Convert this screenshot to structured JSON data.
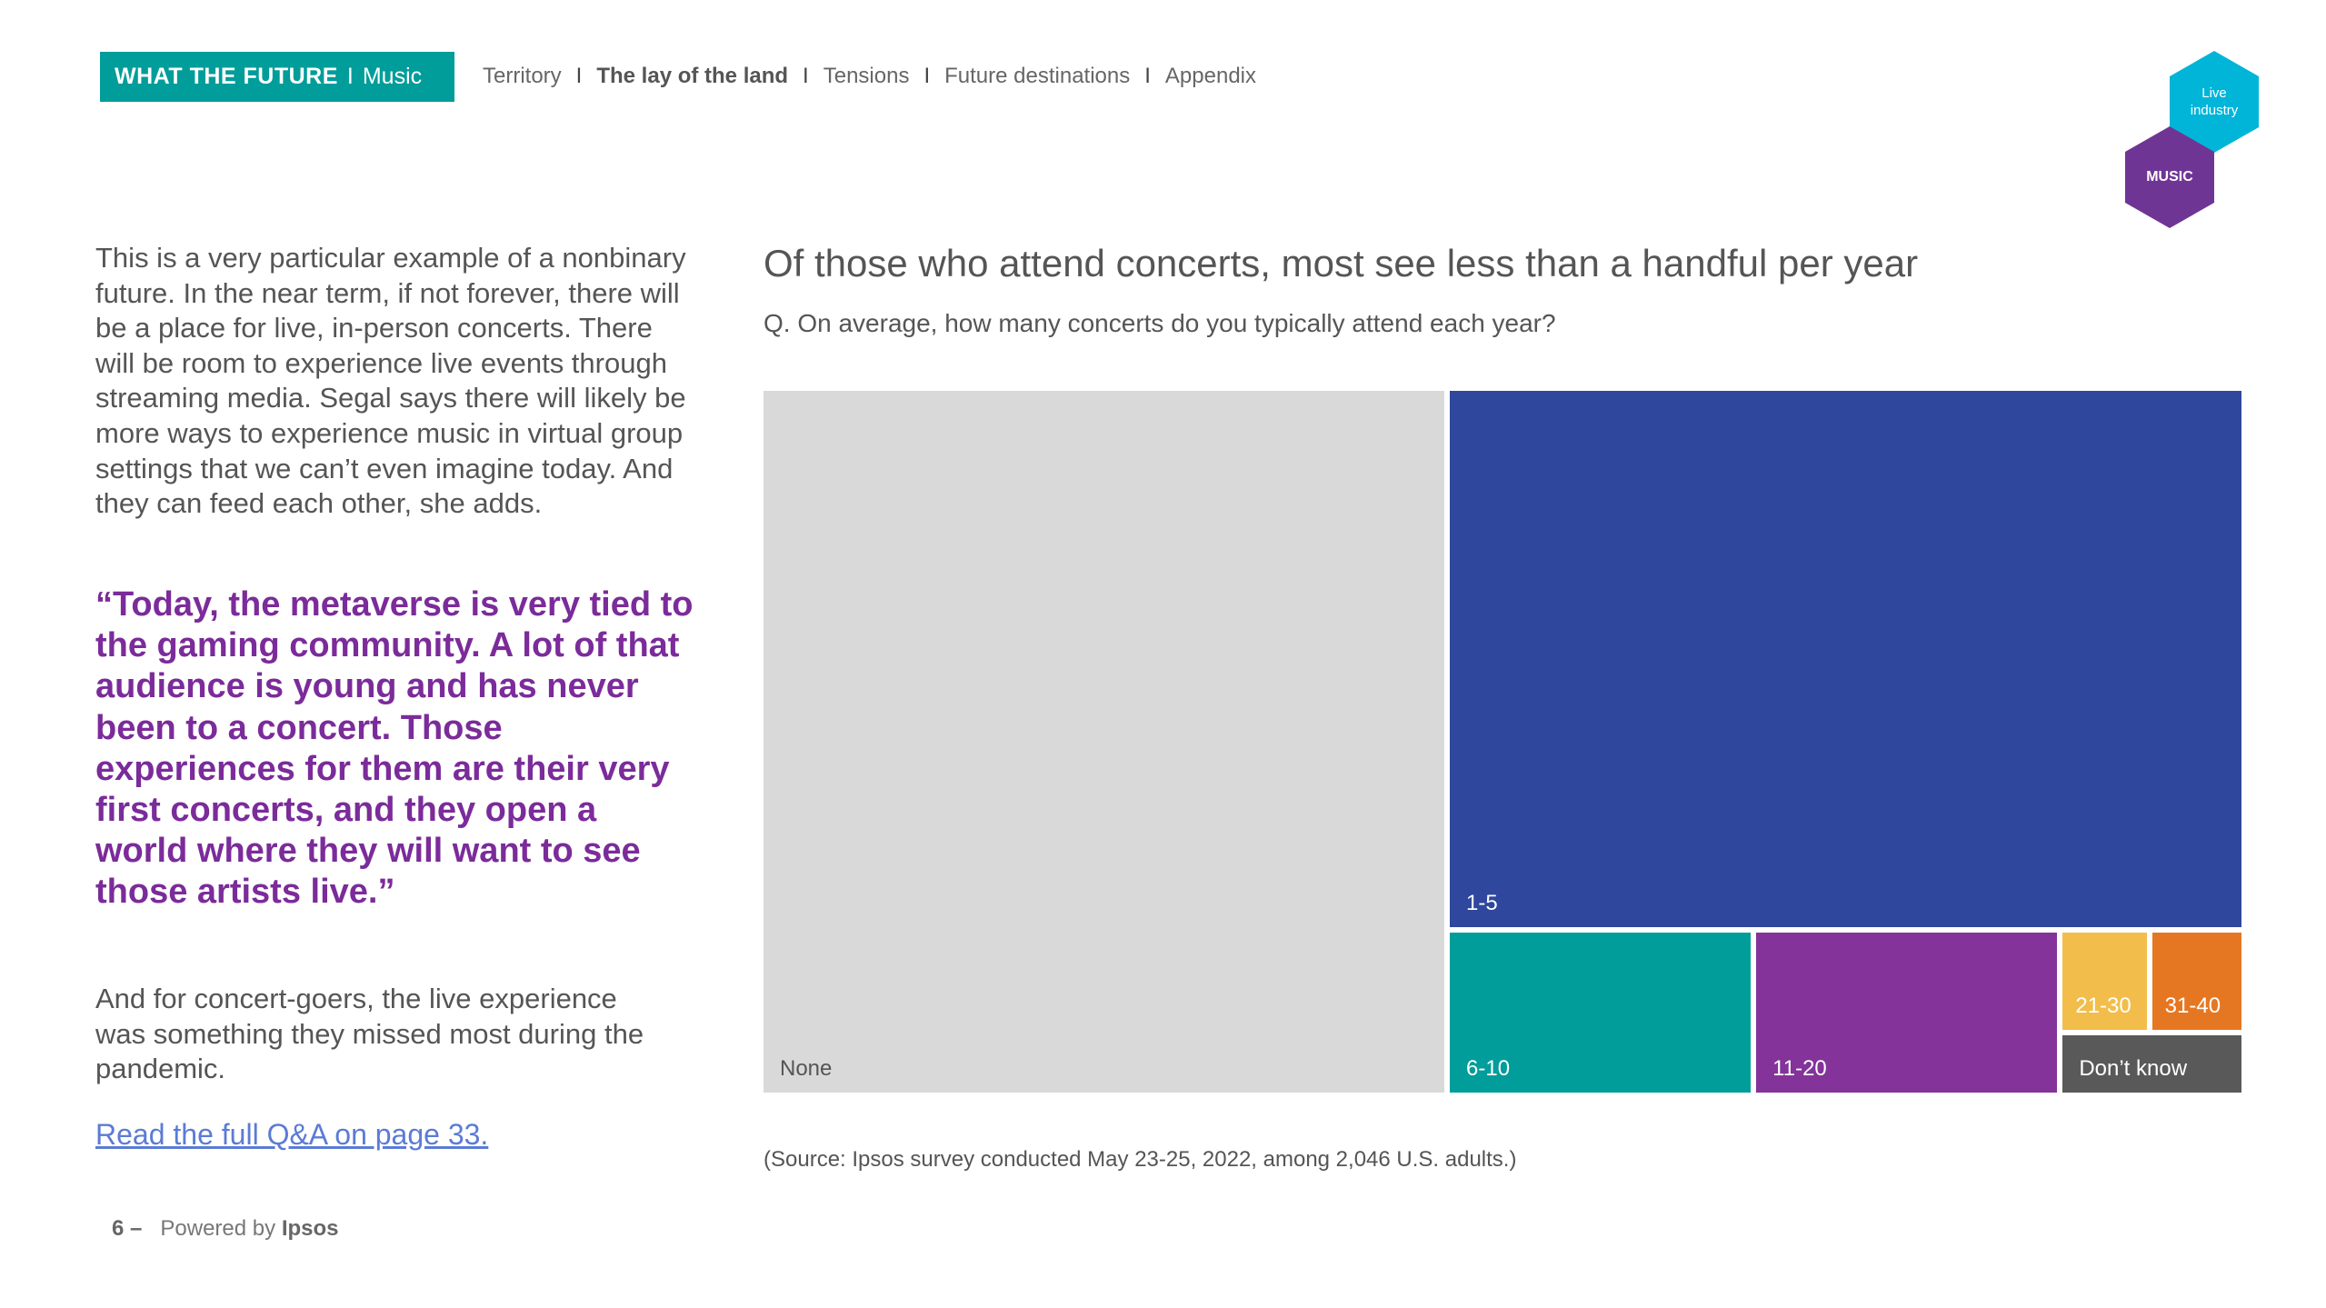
{
  "header": {
    "brand_bold": "WHAT THE FUTURE",
    "brand_sep": "I",
    "brand_sub": "Music",
    "nav": [
      {
        "label": "Territory",
        "active": false
      },
      {
        "label": "The lay of the land",
        "active": true
      },
      {
        "label": "Tensions",
        "active": false
      },
      {
        "label": "Future destinations",
        "active": false
      },
      {
        "label": "Appendix",
        "active": false
      }
    ],
    "nav_sep": "I"
  },
  "badges": {
    "live": "Live industry",
    "music": "MUSIC"
  },
  "left": {
    "body": "This is a very particular example of a nonbinary future. In the near term, if not forever, there will be a place for live, in-person concerts. There will be room to experience live events through streaming media. Segal says there will likely be more ways to experience music in virtual group settings that we can’t even imagine today. And they can feed each other, she adds.",
    "quote": "“Today, the metaverse is very tied to the gaming community. A lot of that audience is young and has never been to a concert. Those experiences for them are their very first concerts, and they open a world where they will want to see those artists live.”",
    "para2": "And for concert-goers, the live experience was something they missed most during the pandemic.",
    "link": "Read the full Q&A on page 33."
  },
  "footer": {
    "page": "6 –",
    "powered": "Powered by",
    "brand": "Ipsos"
  },
  "chart_data": {
    "type": "treemap",
    "title": "Of those who attend concerts, most see less than a handful per year",
    "subtitle": "Q. On average, how many concerts do you typically attend each year?",
    "categories": [
      "None",
      "1-5",
      "6-10",
      "11-20",
      "21-30",
      "31-40",
      "Don’t know"
    ],
    "values": [
      46,
      41,
      4.8,
      4.8,
      0.9,
      0.9,
      1.0
    ],
    "colors": [
      "#d9d9d9",
      "#2f479c",
      "#009d9a",
      "#833399",
      "#f2bd4a",
      "#e67722",
      "#595959"
    ],
    "label_colors": [
      "#555555",
      "#ffffff",
      "#ffffff",
      "#ffffff",
      "#ffffff",
      "#ffffff",
      "#ffffff"
    ],
    "source": "(Source: Ipsos survey conducted May 23-25, 2022, among 2,046 U.S. adults.)"
  }
}
